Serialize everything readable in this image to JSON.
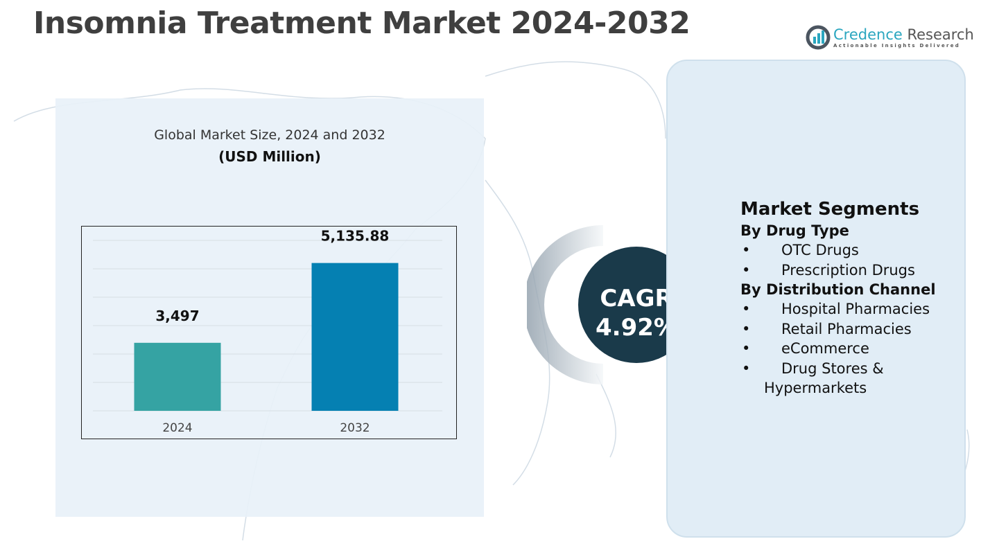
{
  "title": "Insomnia Treatment Market  2024-2032",
  "logo": {
    "name_part1": "Credence",
    "name_part2": "Research",
    "tagline": "Actionable Insights Delivered"
  },
  "chart_data": {
    "type": "bar",
    "title": "Global Market Size, 2024 and 2032",
    "subtitle": "(USD Million)",
    "categories": [
      "2024",
      "2032"
    ],
    "values": [
      3497,
      5135.88
    ],
    "data_labels": [
      "3,497",
      "5,135.88"
    ],
    "colors": [
      "#35a3a3",
      "#0580b2"
    ],
    "grid": true,
    "legend": "none"
  },
  "cagr": {
    "label": "CAGR",
    "value": "4.92%",
    "color": "#1a3a4a"
  },
  "segments": {
    "heading": "Market Segments",
    "groups": [
      {
        "title": "By Drug Type",
        "items": [
          "OTC Drugs",
          "Prescription Drugs"
        ]
      },
      {
        "title": "By Distribution Channel",
        "items": [
          "Hospital Pharmacies",
          "Retail Pharmacies",
          "eCommerce",
          "Drug Stores &"
        ],
        "continuation": "Hypermarkets"
      }
    ]
  }
}
